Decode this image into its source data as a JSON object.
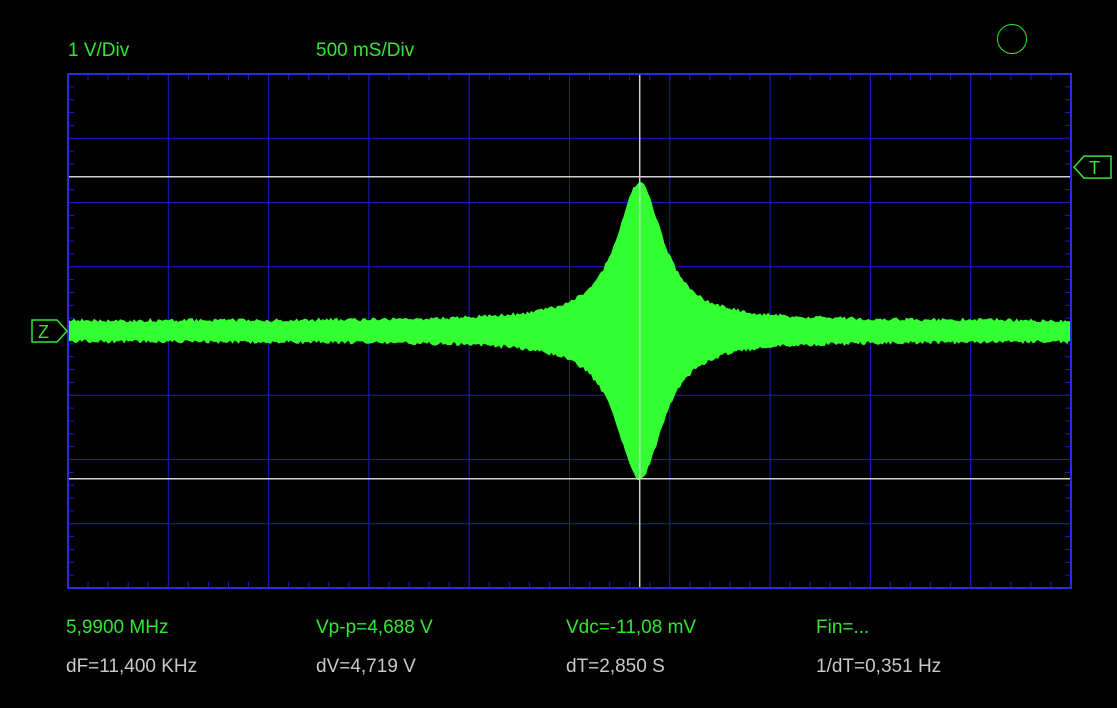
{
  "header": {
    "volts_per_div": "1 V/Div",
    "time_per_div": "500 mS/Div"
  },
  "markers": {
    "zero_marker": "Z",
    "trigger_marker": "T"
  },
  "measurements": {
    "frequency": "5,9900 MHz",
    "vpp": "Vp-p=4,688 V",
    "vdc": "Vdc=-11,08 mV",
    "fin": "Fin=..."
  },
  "cursors": {
    "delta_f": "dF=11,400 KHz",
    "delta_v": "dV=4,719 V",
    "delta_t": "dT=2,850 S",
    "inverse_dt": "1/dT=0,351 Hz"
  },
  "colors": {
    "background": "#000000",
    "grid": "#1a1ad0",
    "frame": "#2a2ae8",
    "trace": "#33ff33",
    "cursor": "#d0d0d0",
    "text_primary": "#33e633",
    "text_secondary": "#c8c8c8"
  },
  "chart_data": {
    "type": "line",
    "divisions_x": 10,
    "divisions_y": 8,
    "zero_level_div": 4.0,
    "envelope_peak_time_div": 5.7,
    "envelope_peak_amplitude_div": 2.3,
    "envelope_baseline_amplitude_div": 0.15,
    "cursor_time_div": 5.7,
    "cursor_upper_div": 1.6,
    "cursor_lower_div": 6.3
  }
}
